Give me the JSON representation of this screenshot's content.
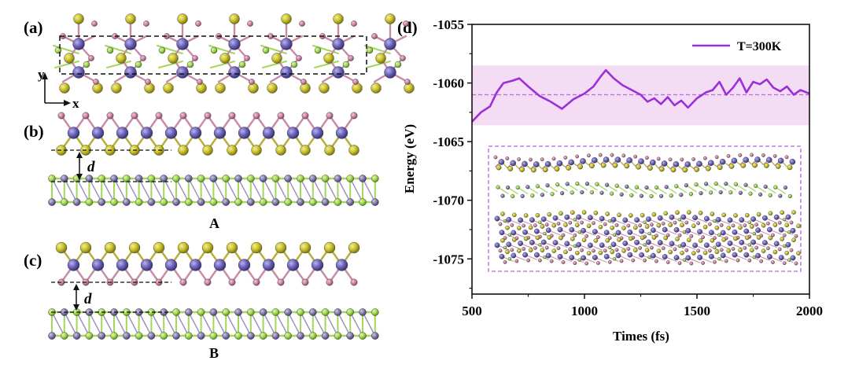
{
  "panels": {
    "a": {
      "label": "(a)",
      "axis_y": "y",
      "axis_x": "x"
    },
    "b": {
      "label": "(b)",
      "distance_label": "d",
      "caption": "A"
    },
    "c": {
      "label": "(c)",
      "distance_label": "d",
      "caption": "B"
    },
    "d": {
      "label": "(d)"
    }
  },
  "colors": {
    "metal": "#6c63b8",
    "chalcogen_yellow": "#c8c02a",
    "small_pink": "#c97f9f",
    "green": "#9bd24a",
    "purple_small": "#7f73a8",
    "bond_pink": "#c88aa8",
    "bond_green": "#a3d65a",
    "line": "#9b30d9",
    "band": "#f4dcf4"
  },
  "chart_data": {
    "type": "line",
    "xlabel": "Times (fs)",
    "ylabel": "Energy (eV)",
    "xlim": [
      500,
      2000
    ],
    "ylim": [
      -1078,
      -1055
    ],
    "xticks": [
      500,
      1000,
      1500,
      2000
    ],
    "yticks": [
      -1055,
      -1060,
      -1065,
      -1070,
      -1075
    ],
    "x_tick_labels": [
      "500",
      "1000",
      "1500",
      "2000"
    ],
    "y_tick_labels": [
      "-1055",
      "-1060",
      "-1065",
      "-1070",
      "-1075"
    ],
    "legend": "top-right",
    "series": [
      {
        "name": "T=300K",
        "x": [
          500,
          540,
          580,
          610,
          640,
          680,
          710,
          750,
          800,
          850,
          900,
          950,
          1000,
          1040,
          1070,
          1095,
          1130,
          1170,
          1210,
          1250,
          1280,
          1310,
          1340,
          1370,
          1400,
          1430,
          1460,
          1500,
          1540,
          1570,
          1600,
          1630,
          1660,
          1690,
          1720,
          1750,
          1780,
          1810,
          1840,
          1870,
          1900,
          1930,
          1960,
          2000
        ],
        "y": [
          -1063.3,
          -1062.5,
          -1062.0,
          -1060.8,
          -1060.0,
          -1059.8,
          -1059.6,
          -1060.3,
          -1061.1,
          -1061.6,
          -1062.2,
          -1061.4,
          -1060.9,
          -1060.3,
          -1059.5,
          -1058.9,
          -1059.6,
          -1060.2,
          -1060.6,
          -1061.0,
          -1061.6,
          -1061.3,
          -1061.8,
          -1061.2,
          -1061.9,
          -1061.5,
          -1062.1,
          -1061.3,
          -1060.8,
          -1060.6,
          -1059.9,
          -1061.0,
          -1060.4,
          -1059.6,
          -1060.8,
          -1059.9,
          -1060.1,
          -1059.7,
          -1060.4,
          -1060.7,
          -1060.3,
          -1061.0,
          -1060.6,
          -1060.9
        ]
      }
    ],
    "mean_energy": -1061.0,
    "band": [
      -1063.6,
      -1058.5
    ]
  }
}
